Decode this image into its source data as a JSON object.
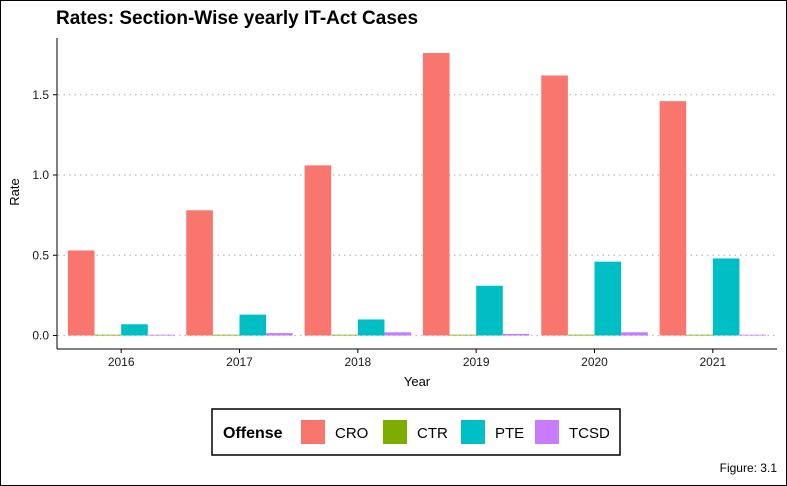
{
  "chart_data": {
    "type": "bar",
    "title": "Rates: Section-Wise yearly IT-Act Cases",
    "xlabel": "Year",
    "ylabel": "Rate",
    "categories": [
      "2016",
      "2017",
      "2018",
      "2019",
      "2020",
      "2021"
    ],
    "yticks": [
      "0.0",
      "0.5",
      "1.0",
      "1.5"
    ],
    "ylim": [
      -0.02,
      1.82
    ],
    "grid": "horizontal-dotted",
    "legend_title": "Offense",
    "legend_position": "bottom",
    "caption": "Figure: 3.1",
    "series": [
      {
        "name": "CRO",
        "color": "#F8766D",
        "values": [
          0.53,
          0.78,
          1.06,
          1.76,
          1.62,
          1.46
        ]
      },
      {
        "name": "CTR",
        "color": "#7CAE00",
        "values": [
          0.004,
          0.004,
          0.004,
          0.004,
          0.004,
          0.004
        ]
      },
      {
        "name": "PTE",
        "color": "#00BFC4",
        "values": [
          0.07,
          0.13,
          0.1,
          0.31,
          0.46,
          0.48
        ]
      },
      {
        "name": "TCSD",
        "color": "#C77CFF",
        "values": [
          0.005,
          0.015,
          0.02,
          0.01,
          0.02,
          0.005
        ]
      }
    ]
  }
}
